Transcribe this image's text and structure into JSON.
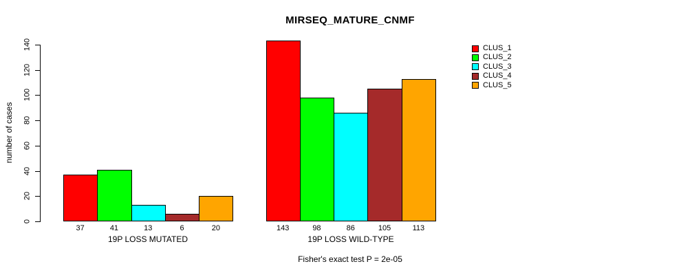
{
  "chart_data": {
    "type": "bar",
    "title": "MIRSEQ_MATURE_CNMF",
    "ylabel": "number of cases",
    "xlabel": "",
    "groups": [
      "19P LOSS MUTATED",
      "19P LOSS WILD-TYPE"
    ],
    "series": [
      {
        "name": "CLUS_1",
        "color": "#FF0000",
        "values": [
          37,
          143
        ]
      },
      {
        "name": "CLUS_2",
        "color": "#00FF00",
        "values": [
          41,
          98
        ]
      },
      {
        "name": "CLUS_3",
        "color": "#00FFFF",
        "values": [
          13,
          86
        ]
      },
      {
        "name": "CLUS_4",
        "color": "#A52A2A",
        "values": [
          6,
          105
        ]
      },
      {
        "name": "CLUS_5",
        "color": "#FFA500",
        "values": [
          20,
          113
        ]
      }
    ],
    "yticks": [
      0,
      20,
      40,
      60,
      80,
      100,
      120,
      140
    ],
    "ylim": [
      0,
      145
    ],
    "grid": false,
    "bar_value_labels_shown": true,
    "legend_position": "right",
    "annotation": "Fisher's exact test P = 2e-05",
    "colors": {
      "background": "#FFFFFF",
      "axis": "#000000",
      "text": "#000000"
    }
  }
}
